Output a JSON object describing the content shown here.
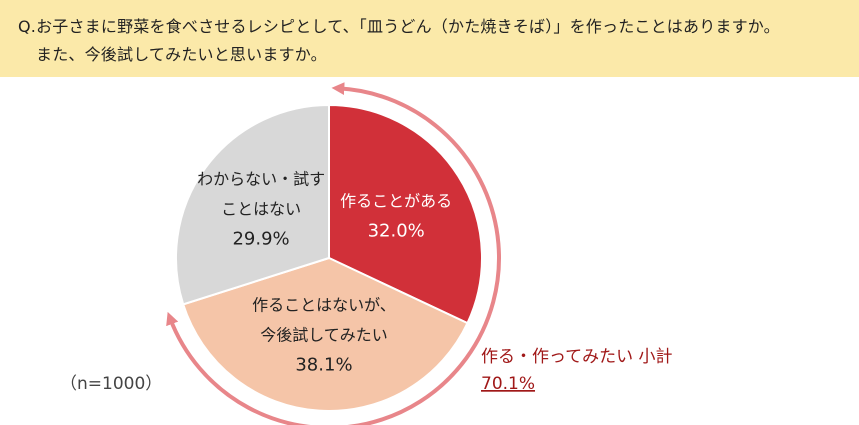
{
  "question": {
    "line1": "Q.お子さまに野菜を食べさせるレシピとして、「皿うどん（かた焼きそば）」を作ったことはありますか。",
    "line2": "また、今後試してみたいと思いますか。"
  },
  "sample_size": "（n=1000）",
  "subtotal": {
    "label": "作る・作ってみたい 小計",
    "value": "70.1%"
  },
  "colors": {
    "made": "#d13039",
    "want": "#f5c5a8",
    "unknown": "#d8d8d8",
    "arrow": "#e8868a",
    "subtotal_text": "#a01818"
  },
  "chart_data": {
    "type": "pie",
    "slices": [
      {
        "label_lines": [
          "作ることがある"
        ],
        "value": 32.0,
        "value_label": "32.0%",
        "color": "#d13039",
        "text_color": "#ffffff"
      },
      {
        "label_lines": [
          "作ることはないが、",
          "今後試してみたい"
        ],
        "value": 38.1,
        "value_label": "38.1%",
        "color": "#f5c5a8",
        "text_color": "#222222"
      },
      {
        "label_lines": [
          "わからない・試す",
          "ことはない"
        ],
        "value": 29.9,
        "value_label": "29.9%",
        "color": "#d8d8d8",
        "text_color": "#222222"
      }
    ]
  }
}
